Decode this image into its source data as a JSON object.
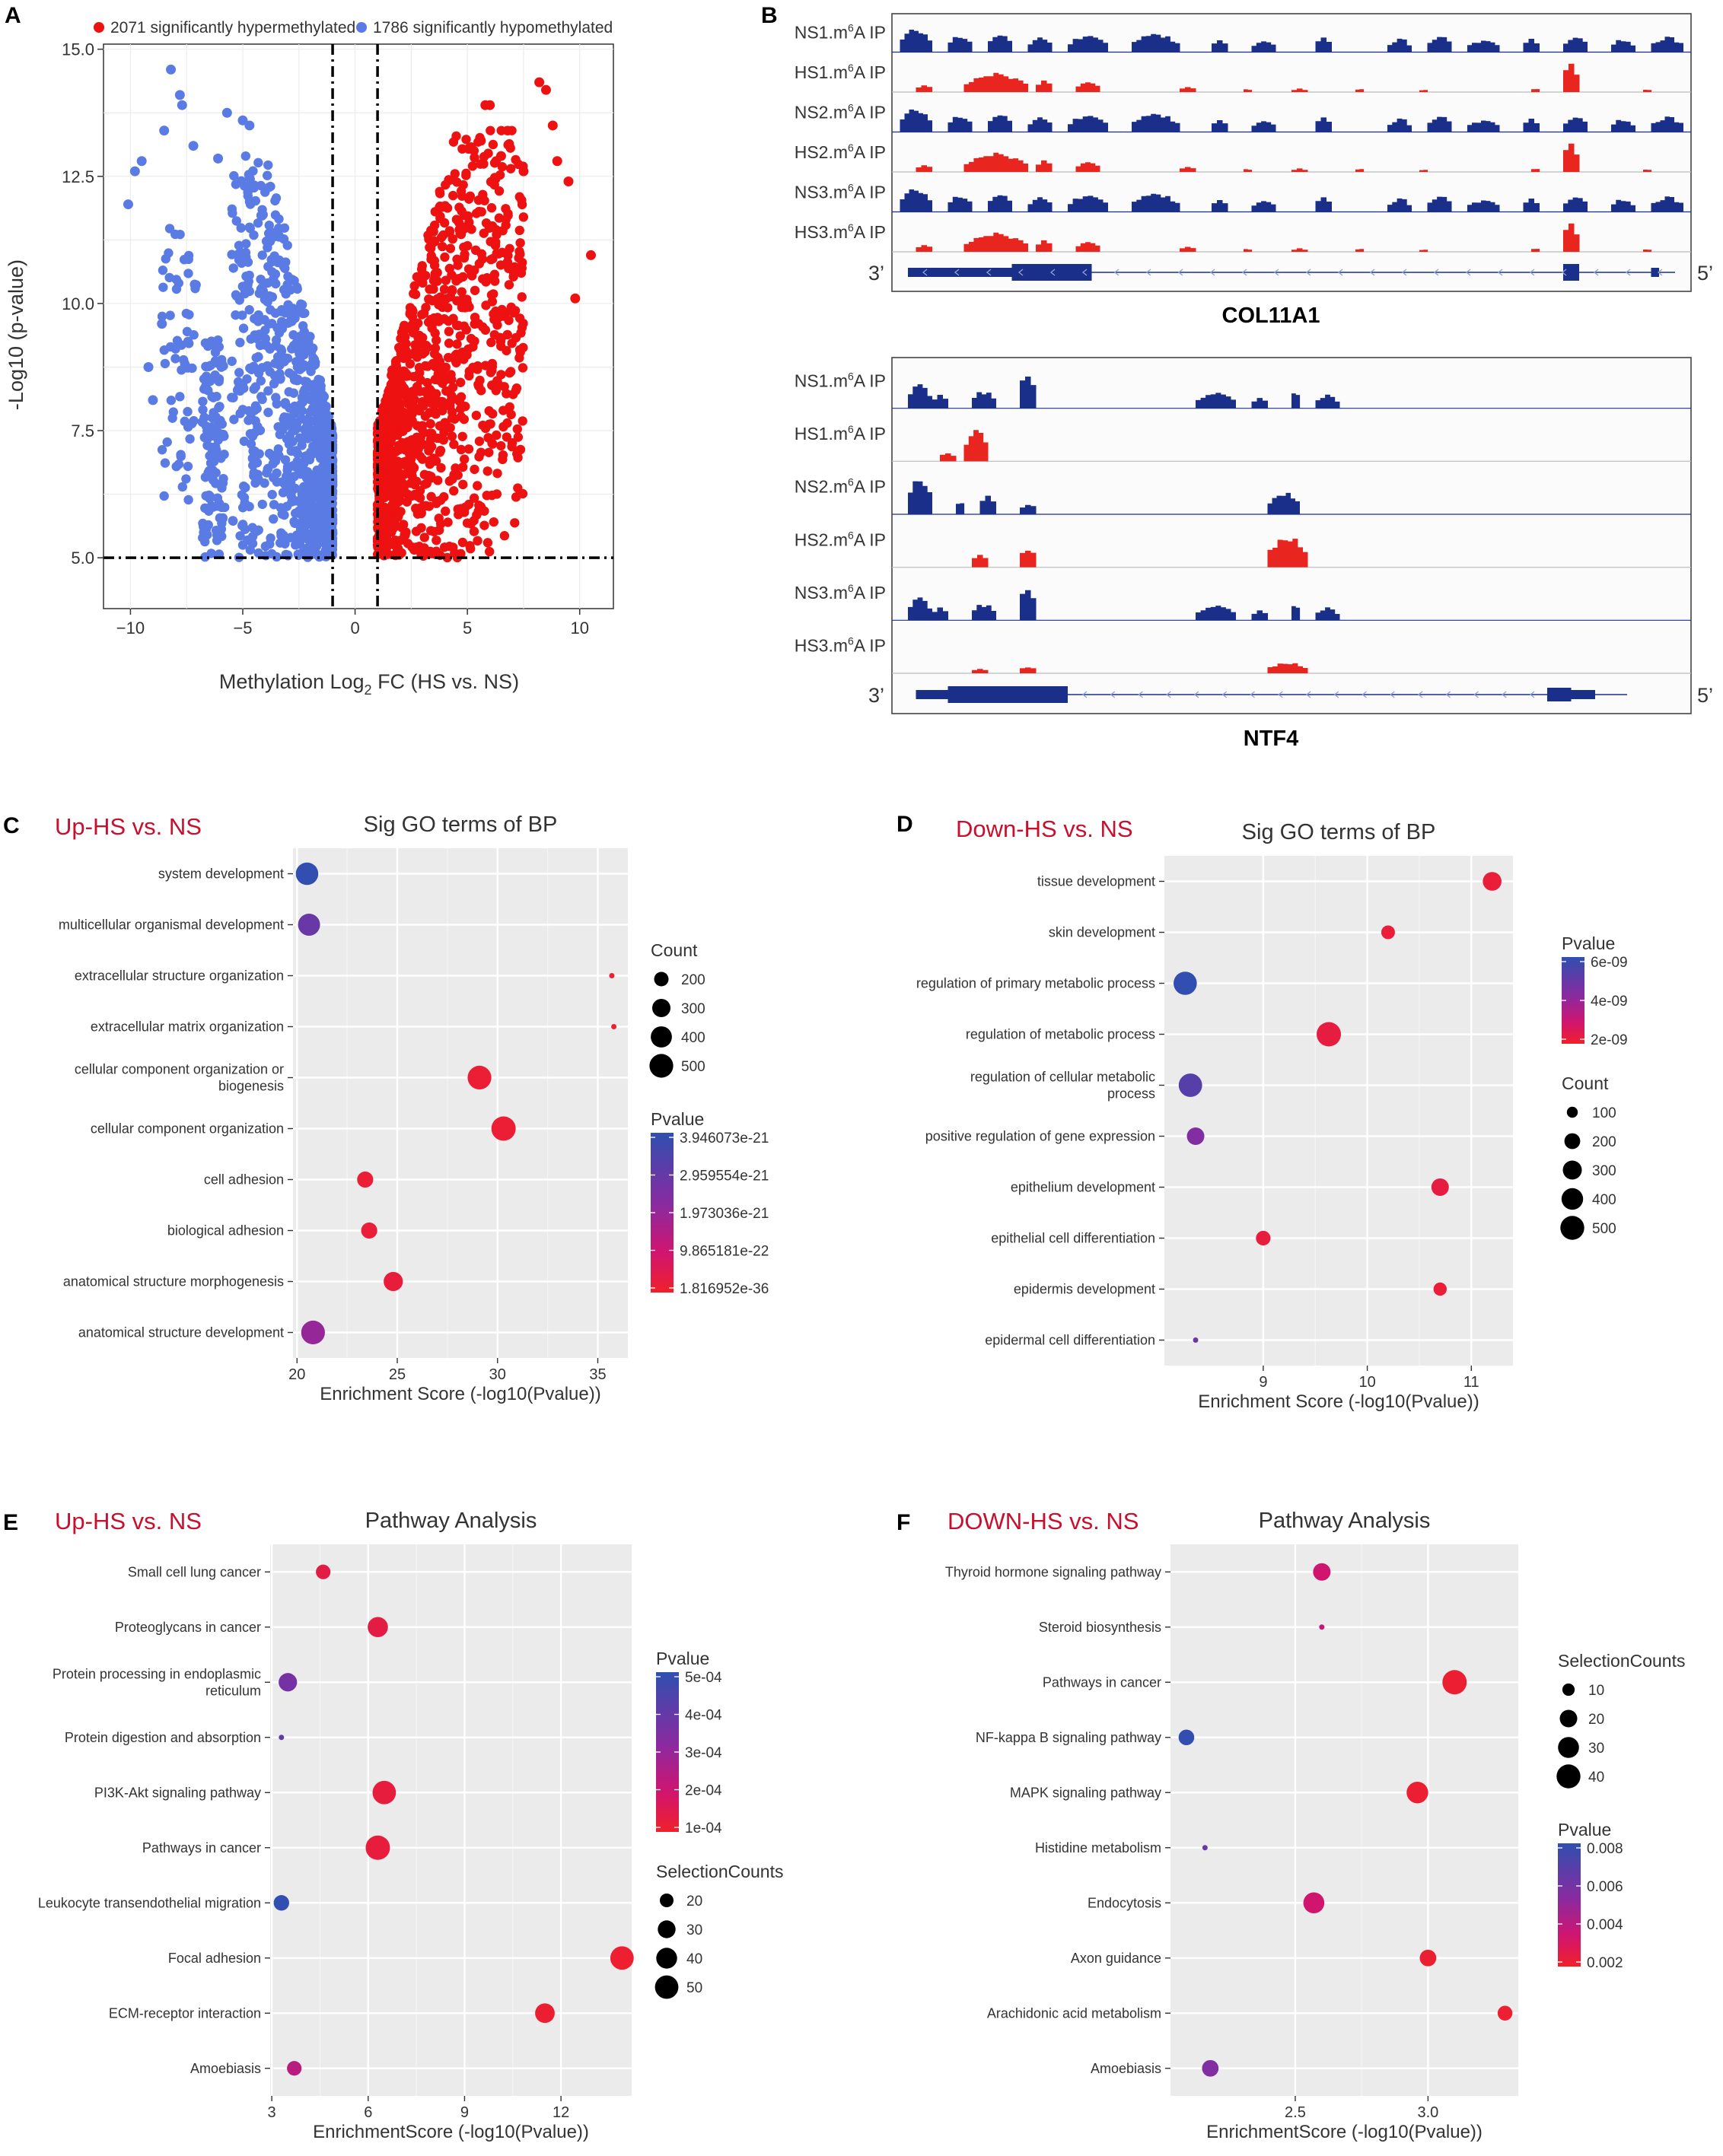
{
  "panels": {
    "A": {
      "letter": "A",
      "legend_hyper": "2071 significantly hypermethylated",
      "legend_hypo": "1786 significantly hypomethylated",
      "xlabel_prefix": "Methylation Log",
      "xlabel_sub": "2",
      "xlabel_suffix": " FC (HS vs. NS)",
      "ylabel": "-Log10 (p-value)",
      "colors": {
        "hyper": "#ee1111",
        "hypo": "#5b7be4"
      }
    },
    "B": {
      "letter": "B",
      "tracks_top": [
        "NS1.m6A IP",
        "HS1.m6A IP",
        "NS2.m6A IP",
        "HS2.m6A IP",
        "NS3.m6A IP",
        "HS3.m6A IP"
      ],
      "tracks_bottom": [
        "NS1.m6A IP",
        "HS1.m6A IP",
        "NS2.m6A IP",
        "HS2.m6A IP",
        "NS3.m6A IP",
        "HS3.m6A IP"
      ],
      "gene_top": "COL11A1",
      "gene_bottom": "NTF4",
      "end3": "3’",
      "end5": "5’",
      "colors": {
        "ns": "#1a2f8a",
        "hs": "#e8251f"
      }
    },
    "C": {
      "letter": "C",
      "subtitle": "Up-HS vs. NS"
    },
    "D": {
      "letter": "D",
      "subtitle": "Down-HS vs. NS"
    },
    "E": {
      "letter": "E",
      "subtitle": "Up-HS vs. NS"
    },
    "F": {
      "letter": "F",
      "subtitle": "DOWN-HS vs. NS"
    }
  },
  "chart_data": [
    {
      "id": "A",
      "type": "scatter",
      "title": "",
      "xlabel": "Methylation Log2 FC (HS vs. NS)",
      "ylabel": "-Log10 (p-value)",
      "xlim": [
        -11.2,
        11.5
      ],
      "ylim": [
        4.0,
        15.1
      ],
      "xticks": [
        -10,
        -5,
        0,
        5,
        10
      ],
      "yticks": [
        5.0,
        7.5,
        10.0,
        12.5,
        15.0
      ],
      "thresholds": {
        "x": [
          -1,
          1
        ],
        "y": 5.0
      },
      "series": [
        {
          "name": "2071 significantly hypermethylated",
          "count": 2071,
          "x_range": [
            1,
            10.5
          ],
          "y_range": [
            5.0,
            14.3
          ]
        },
        {
          "name": "1786 significantly hypomethylated",
          "count": 1786,
          "x_range": [
            -10.1,
            -1
          ],
          "y_range": [
            5.0,
            14.6
          ]
        }
      ],
      "outliers_hyper": [
        [
          10.5,
          10.95
        ],
        [
          9.5,
          12.4
        ],
        [
          9.0,
          12.8
        ],
        [
          8.5,
          14.2
        ],
        [
          8.2,
          14.35
        ],
        [
          8.8,
          13.5
        ],
        [
          9.8,
          10.1
        ],
        [
          7.5,
          12.6
        ],
        [
          6.0,
          13.9
        ],
        [
          5.8,
          13.9
        ],
        [
          6.5,
          12.9
        ],
        [
          5.6,
          13.2
        ]
      ],
      "outliers_hypo": [
        [
          -10.1,
          11.95
        ],
        [
          -9.8,
          12.6
        ],
        [
          -9.5,
          12.8
        ],
        [
          -8.5,
          13.4
        ],
        [
          -8.2,
          14.6
        ],
        [
          -7.8,
          14.1
        ],
        [
          -7.7,
          13.9
        ],
        [
          -7.2,
          13.1
        ],
        [
          -6.1,
          12.85
        ],
        [
          -5.7,
          13.75
        ],
        [
          -5.0,
          13.6
        ],
        [
          -4.7,
          13.5
        ],
        [
          -9.2,
          8.75
        ],
        [
          -9.0,
          8.1
        ],
        [
          -8.6,
          9.6
        ]
      ]
    },
    {
      "id": "C",
      "type": "scatter",
      "title": "Sig GO terms of BP",
      "xlabel": "Enrichment Score (-log10(Pvalue))",
      "xlim": [
        19.8,
        36.5
      ],
      "xticks": [
        20,
        25,
        30,
        35
      ],
      "categories": [
        "system development",
        "multicellular organismal development",
        "extracellular structure organization",
        "extracellular matrix organization",
        "cellular component organization or biogenesis",
        "cellular component organization",
        "cell adhesion",
        "biological adhesion",
        "anatomical structure morphogenesis",
        "anatomical structure development"
      ],
      "category_lines": [
        [
          "system development"
        ],
        [
          "multicellular organismal development"
        ],
        [
          "extracellular structure organization"
        ],
        [
          "extracellular matrix organization"
        ],
        [
          "cellular component organization or",
          "biogenesis"
        ],
        [
          "cellular component organization"
        ],
        [
          "cell adhesion"
        ],
        [
          "biological adhesion"
        ],
        [
          "anatomical structure morphogenesis"
        ],
        [
          "anatomical structure development"
        ]
      ],
      "x": [
        20.5,
        20.6,
        35.7,
        35.8,
        29.1,
        30.3,
        23.4,
        23.6,
        24.8,
        20.8
      ],
      "size": [
        450,
        430,
        100,
        100,
        500,
        530,
        240,
        240,
        330,
        500
      ],
      "color_value": [
        0.99,
        0.72,
        0.02,
        0.02,
        0.04,
        0.04,
        0.04,
        0.05,
        0.06,
        0.5
      ],
      "size_legend": {
        "title": "Count",
        "values": [
          200,
          300,
          400,
          500
        ],
        "labels": [
          "200",
          "300",
          "400",
          "500"
        ]
      },
      "color_legend": {
        "title": "Pvalue",
        "labels": [
          "3.946073e-21",
          "2.959554e-21",
          "1.973036e-21",
          "9.865181e-22",
          "1.816952e-36"
        ]
      },
      "size_range": [
        100,
        530
      ],
      "radius_range": [
        3.5,
        16
      ]
    },
    {
      "id": "D",
      "type": "scatter",
      "title": "Sig GO terms of BP",
      "xlabel": "Enrichment Score (-log10(Pvalue))",
      "xlim": [
        8.05,
        11.4
      ],
      "xticks": [
        9,
        10,
        11
      ],
      "categories": [
        "tissue development",
        "skin development",
        "regulation of primary metabolic process",
        "regulation of metabolic process",
        "regulation of cellular metabolic process",
        "positive regulation of gene expression",
        "epithelium development",
        "epithelial cell differentiation",
        "epidermis development",
        "epidermal cell differentiation"
      ],
      "category_lines": [
        [
          "tissue development"
        ],
        [
          "skin development"
        ],
        [
          "regulation of primary metabolic process"
        ],
        [
          "regulation of metabolic process"
        ],
        [
          "regulation of cellular metabolic",
          "process"
        ],
        [
          "positive regulation of gene expression"
        ],
        [
          "epithelium development"
        ],
        [
          "epithelial cell differentiation"
        ],
        [
          "epidermis development"
        ],
        [
          "epidermal cell differentiation"
        ]
      ],
      "x": [
        11.2,
        10.2,
        8.25,
        9.63,
        8.3,
        8.35,
        10.7,
        9.0,
        10.7,
        8.35
      ],
      "size": [
        290,
        150,
        470,
        520,
        480,
        250,
        250,
        170,
        140,
        60
      ],
      "color_value": [
        0.05,
        0.05,
        0.99,
        0.08,
        0.8,
        0.6,
        0.08,
        0.07,
        0.05,
        0.7
      ],
      "size_legend": {
        "title": "Count",
        "values": [
          100,
          200,
          300,
          400,
          500
        ],
        "labels": [
          "100",
          "200",
          "300",
          "400",
          "500"
        ]
      },
      "color_legend": {
        "title": "Pvalue",
        "labels": [
          "6e-09",
          "4e-09",
          "2e-09"
        ]
      },
      "size_range": [
        60,
        520
      ],
      "radius_range": [
        3.5,
        16
      ]
    },
    {
      "id": "E",
      "type": "scatter",
      "title": "Pathway Analysis",
      "xlabel": "EnrichmentScore (-log10(Pvalue))",
      "xlim": [
        2.95,
        14.2
      ],
      "xticks": [
        3,
        6,
        9,
        12
      ],
      "categories": [
        "Small cell lung cancer",
        "Proteoglycans in cancer",
        "Protein processing in endoplasmic reticulum",
        "Protein digestion and absorption",
        "PI3K-Akt signaling pathway",
        "Pathways in cancer",
        "Leukocyte transendothelial migration",
        "Focal adhesion",
        "ECM-receptor interaction",
        "Amoebiasis"
      ],
      "category_lines": [
        [
          "Small cell lung cancer"
        ],
        [
          "Proteoglycans in cancer"
        ],
        [
          "Protein processing in endoplasmic",
          "reticulum"
        ],
        [
          "Protein digestion and absorption"
        ],
        [
          "PI3K-Akt signaling pathway"
        ],
        [
          "Pathways in cancer"
        ],
        [
          "Leukocyte transendothelial migration"
        ],
        [
          "Focal adhesion"
        ],
        [
          "ECM-receptor interaction"
        ],
        [
          "Amoebiasis"
        ]
      ],
      "x": [
        4.6,
        6.3,
        3.5,
        3.3,
        6.5,
        6.3,
        3.3,
        13.9,
        11.5,
        3.7
      ],
      "size": [
        22,
        38,
        32,
        12,
        50,
        54,
        24,
        50,
        36,
        22
      ],
      "color_value": [
        0.1,
        0.1,
        0.65,
        0.75,
        0.07,
        0.06,
        0.99,
        0.02,
        0.03,
        0.35
      ],
      "size_legend": {
        "title": "SelectionCounts",
        "values": [
          20,
          30,
          40,
          50
        ],
        "labels": [
          "20",
          "30",
          "40",
          "50"
        ]
      },
      "color_legend": {
        "title": "Pvalue",
        "labels": [
          "5e-04",
          "4e-04",
          "3e-04",
          "2e-04",
          "1e-04"
        ]
      },
      "size_range": [
        12,
        54
      ],
      "radius_range": [
        3.5,
        16
      ]
    },
    {
      "id": "F",
      "type": "scatter",
      "title": "Pathway Analysis",
      "xlabel": "EnrichmentScore (-log10(Pvalue))",
      "xlim": [
        2.03,
        3.34
      ],
      "xticks": [
        2.5,
        3.0
      ],
      "xtick_labels": [
        "2.5",
        "3.0"
      ],
      "categories": [
        "Thyroid hormone signaling pathway",
        "Steroid biosynthesis",
        "Pathways in cancer",
        "NF-kappa B signaling pathway",
        "MAPK signaling pathway",
        "Histidine metabolism",
        "Endocytosis",
        "Axon guidance",
        "Arachidonic acid metabolism",
        "Amoebiasis"
      ],
      "category_lines": [
        [
          "Thyroid hormone signaling pathway"
        ],
        [
          "Steroid biosynthesis"
        ],
        [
          "Pathways in cancer"
        ],
        [
          "NF-kappa B signaling pathway"
        ],
        [
          "MAPK signaling pathway"
        ],
        [
          "Histidine metabolism"
        ],
        [
          "Endocytosis"
        ],
        [
          "Axon guidance"
        ],
        [
          "Arachidonic acid metabolism"
        ],
        [
          "Amoebiasis"
        ]
      ],
      "x": [
        2.6,
        2.6,
        3.1,
        2.09,
        2.96,
        2.16,
        2.57,
        3.0,
        3.29,
        2.18
      ],
      "size": [
        20,
        5,
        42,
        16,
        32,
        5,
        30,
        18,
        14,
        18
      ],
      "color_value": [
        0.25,
        0.3,
        0.03,
        0.99,
        0.03,
        0.7,
        0.25,
        0.03,
        0.02,
        0.6
      ],
      "size_legend": {
        "title": "SelectionCounts",
        "values": [
          10,
          20,
          30,
          40
        ],
        "labels": [
          "10",
          "20",
          "30",
          "40"
        ]
      },
      "color_legend": {
        "title": "Pvalue",
        "labels": [
          "0.008",
          "0.006",
          "0.004",
          "0.002"
        ]
      },
      "size_range": [
        5,
        42
      ],
      "radius_range": [
        3.5,
        16
      ]
    }
  ]
}
